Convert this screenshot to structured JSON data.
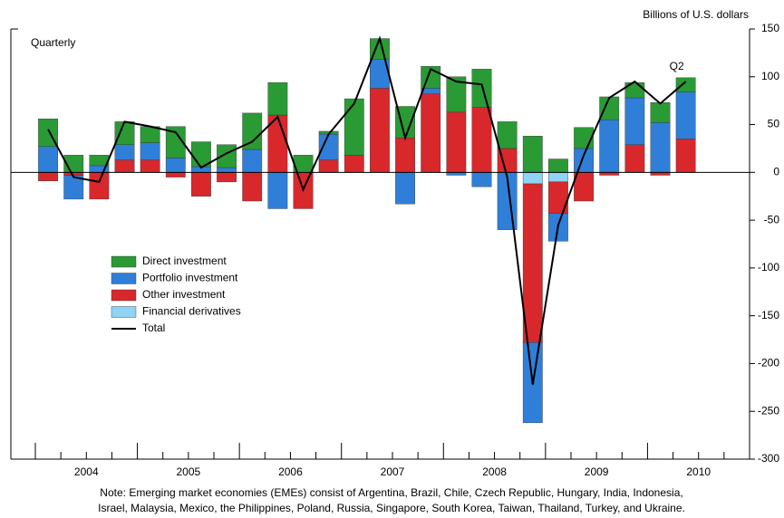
{
  "chart_data": {
    "type": "stacked-bar-line",
    "subtitle": "Quarterly",
    "y_axis_label": "Billions of U.S. dollars",
    "annotation": "Q2",
    "note": [
      "Note: Emerging market economies (EMEs) consist of Argentina, Brazil, Chile, Czech Republic, Hungary, India, Indonesia,",
      "Israel, Malaysia, Mexico, the Philippines, Poland, Russia, Singapore, South Korea, Taiwan, Thailand, Turkey, and Ukraine."
    ],
    "year_labels": [
      "2004",
      "2005",
      "2006",
      "2007",
      "2008",
      "2009",
      "2010"
    ],
    "categories": [
      null,
      null,
      null,
      null,
      null,
      null,
      null,
      null,
      null,
      null,
      null,
      null,
      null,
      null,
      null,
      null,
      null,
      null,
      null,
      null,
      null,
      null,
      null,
      null,
      null,
      null
    ],
    "series": [
      {
        "name": "Direct investment",
        "kind": "bar",
        "color": "#2a9a35",
        "values": [
          29,
          18,
          11,
          24,
          17,
          33,
          26,
          24,
          38,
          34,
          18,
          3,
          59,
          22,
          33,
          23,
          37,
          40,
          28,
          38,
          14,
          22,
          24,
          16,
          21,
          15
        ]
      },
      {
        "name": "Portfolio investment",
        "kind": "bar",
        "color": "#2f7fd8",
        "values": [
          27,
          -25,
          7,
          16,
          18,
          15,
          6,
          5,
          24,
          -38,
          0,
          27,
          0,
          30,
          -33,
          6,
          -3,
          -15,
          -60,
          -84,
          -29,
          25,
          55,
          49,
          52,
          49
        ]
      },
      {
        "name": "Other investment",
        "kind": "bar",
        "color": "#d8282c",
        "values": [
          -9,
          -3,
          -28,
          13,
          13,
          -5,
          -25,
          -10,
          -30,
          60,
          -38,
          13,
          18,
          88,
          36,
          82,
          63,
          68,
          25,
          -166,
          -33,
          -30,
          -3,
          29,
          -3,
          35
        ]
      },
      {
        "name": "Financial derivatives",
        "kind": "bar",
        "color": "#8fd3f5",
        "values": [
          0,
          0,
          0,
          0,
          0,
          0,
          0,
          0,
          0,
          0,
          0,
          0,
          0,
          0,
          0,
          0,
          0,
          0,
          0,
          -12,
          -10,
          0,
          0,
          0,
          0,
          0
        ]
      },
      {
        "name": "Total",
        "kind": "line",
        "color": "#000000",
        "values": [
          45,
          -5,
          -10,
          53,
          48,
          42,
          5,
          20,
          32,
          58,
          -18,
          40,
          72,
          140,
          36,
          108,
          95,
          92,
          -5,
          -222,
          -55,
          18,
          78,
          95,
          72,
          95
        ]
      }
    ],
    "ylim": [
      -300,
      150
    ],
    "yticks": [
      -300,
      -250,
      -200,
      -150,
      -100,
      -50,
      0,
      50,
      100,
      150
    ]
  }
}
